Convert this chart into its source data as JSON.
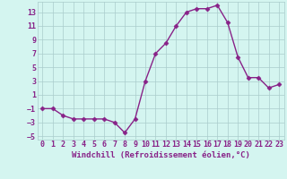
{
  "x": [
    0,
    1,
    2,
    3,
    4,
    5,
    6,
    7,
    8,
    9,
    10,
    11,
    12,
    13,
    14,
    15,
    16,
    17,
    18,
    19,
    20,
    21,
    22,
    23
  ],
  "y": [
    -1,
    -1,
    -2,
    -2.5,
    -2.5,
    -2.5,
    -2.5,
    -3,
    -4.5,
    -2.5,
    3,
    7,
    8.5,
    11,
    13,
    13.5,
    13.5,
    14,
    11.5,
    6.5,
    3.5,
    3.5,
    2,
    2.5
  ],
  "line_color": "#882288",
  "marker": "D",
  "markersize": 2.5,
  "linewidth": 1.0,
  "background_color": "#d4f5f0",
  "grid_color": "#aacccc",
  "xlabel": "Windchill (Refroidissement éolien,°C)",
  "xlabel_fontsize": 6.5,
  "tick_label_fontsize": 6.0,
  "yticks": [
    -5,
    -3,
    -1,
    1,
    3,
    5,
    7,
    9,
    11,
    13
  ],
  "xticks": [
    0,
    1,
    2,
    3,
    4,
    5,
    6,
    7,
    8,
    9,
    10,
    11,
    12,
    13,
    14,
    15,
    16,
    17,
    18,
    19,
    20,
    21,
    22,
    23
  ],
  "xlim": [
    -0.5,
    23.5
  ],
  "ylim": [
    -5.5,
    14.5
  ]
}
